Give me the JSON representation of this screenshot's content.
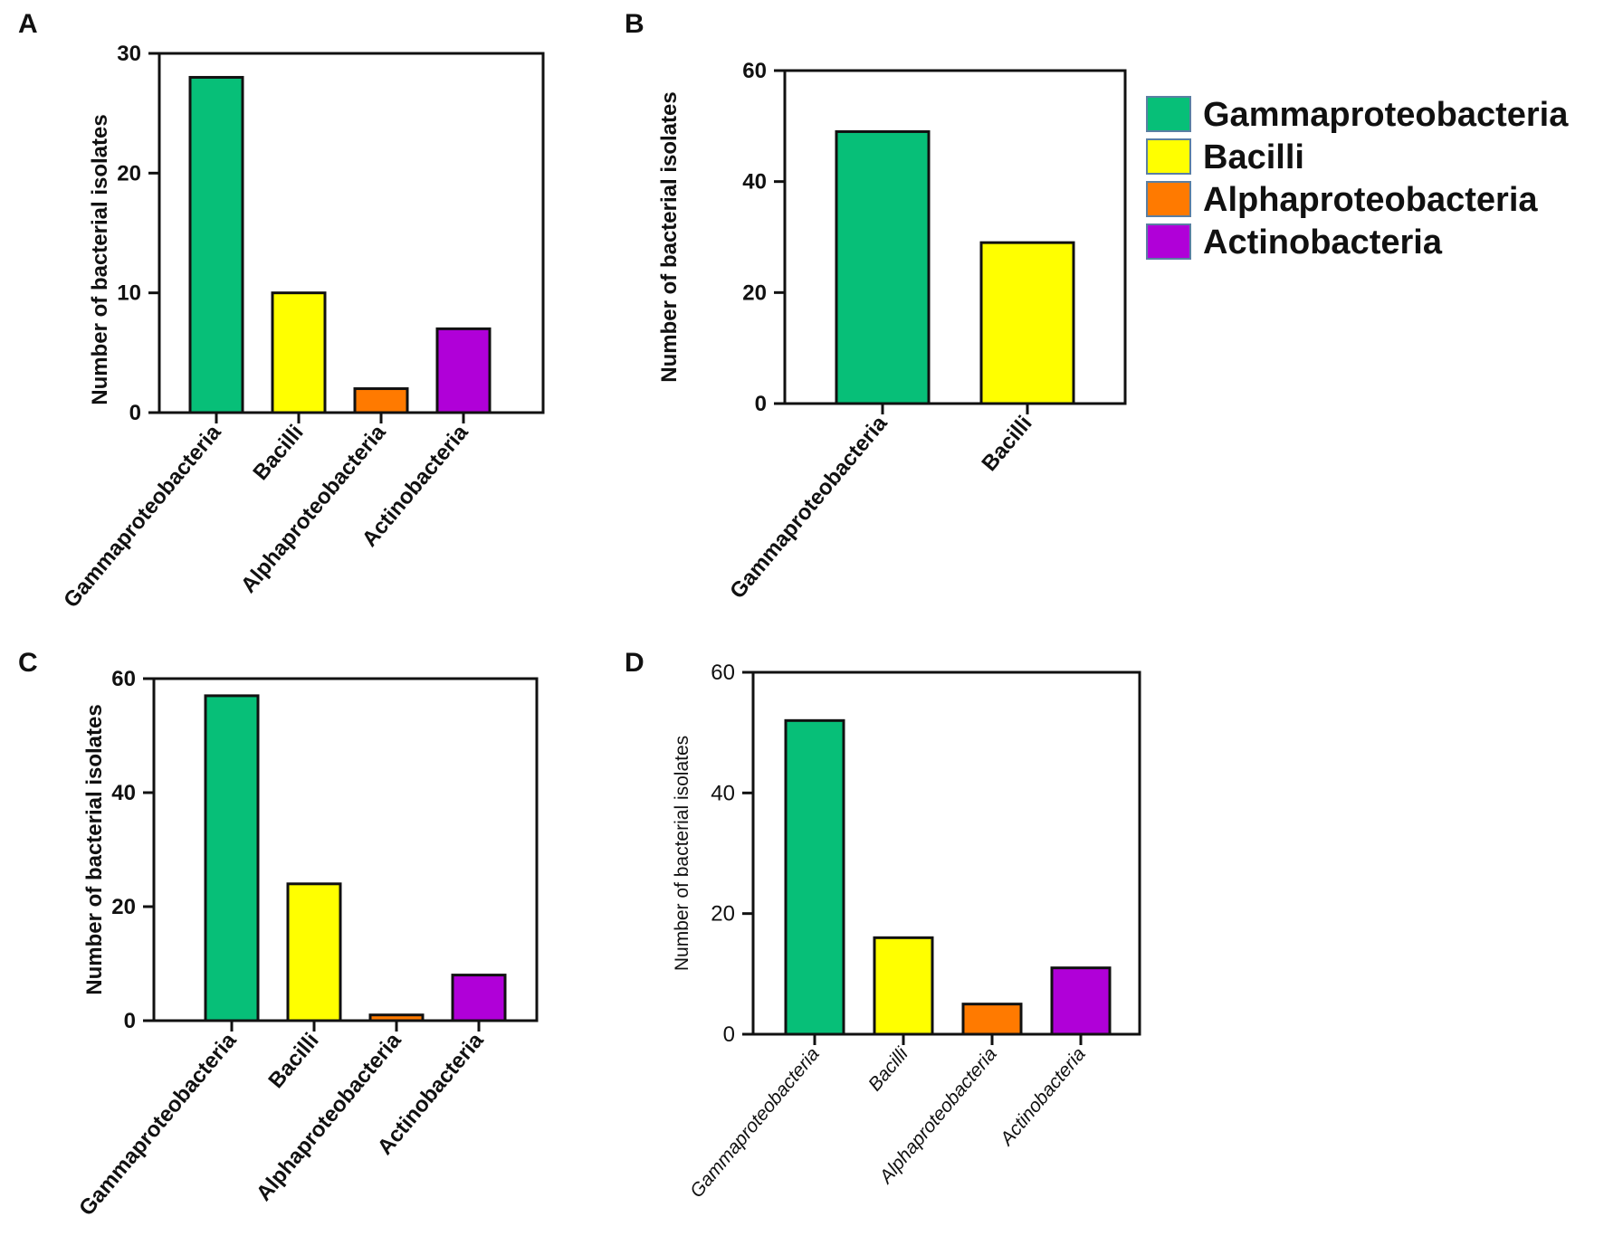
{
  "colors": {
    "Gammaproteobacteria": "#07bf78",
    "Bacilli": "#ffff00",
    "Alphaproteobacteria": "#ff7a00",
    "Actinobacteria": "#b000d8"
  },
  "legend": {
    "items": [
      "Gammaproteobacteria",
      "Bacilli",
      "Alphaproteobacteria",
      "Actinobacteria"
    ]
  },
  "chart_data": [
    {
      "panel": "A",
      "type": "bar",
      "categories": [
        "Gammaproteobacteria",
        "Bacilli",
        "Alphaproteobacteria",
        "Actinobacteria"
      ],
      "values": [
        28,
        10,
        2,
        7
      ],
      "ylabel": "Number of bacterial isolates",
      "xlabel": "",
      "ylim": [
        0,
        30
      ],
      "yticks": [
        0,
        10,
        20,
        30
      ],
      "grid": false
    },
    {
      "panel": "B",
      "type": "bar",
      "categories": [
        "Gammaproteobacteria",
        "Bacilli"
      ],
      "values": [
        49,
        29
      ],
      "ylabel": "Number of bacterial isolates",
      "xlabel": "",
      "ylim": [
        0,
        60
      ],
      "yticks": [
        0,
        20,
        40,
        60
      ],
      "grid": false
    },
    {
      "panel": "C",
      "type": "bar",
      "categories": [
        "Gammaproteobacteria",
        "Bacilli",
        "Alphaproteobacteria",
        "Actinobacteria"
      ],
      "values": [
        57,
        24,
        1,
        8
      ],
      "ylabel": "Number of bacterial isolates",
      "xlabel": "",
      "ylim": [
        0,
        60
      ],
      "yticks": [
        0,
        20,
        40,
        60
      ],
      "grid": false
    },
    {
      "panel": "D",
      "type": "bar",
      "categories": [
        "Gammaproteobacteria",
        "Bacilli",
        "Alphaproteobacteria",
        "Actinobacteria"
      ],
      "values": [
        52,
        16,
        5,
        11
      ],
      "ylabel": "Number of bacterial isolates",
      "xlabel": "",
      "ylim": [
        0,
        60
      ],
      "yticks": [
        0,
        20,
        40,
        60
      ],
      "grid": false
    }
  ]
}
